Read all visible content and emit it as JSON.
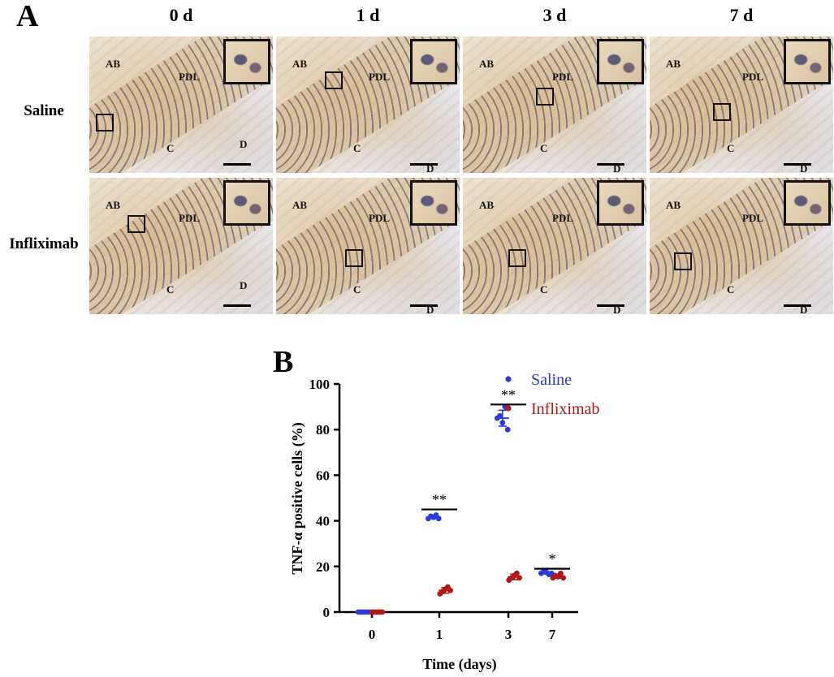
{
  "panel_a": {
    "letter": "A",
    "columns": [
      "0 d",
      "1 d",
      "3 d",
      "7 d"
    ],
    "rows": [
      "Saline",
      "Infliximab"
    ],
    "tile_labels": {
      "ab": "AB",
      "pdl": "PDL",
      "c": "C",
      "d": "D"
    }
  },
  "panel_b": {
    "letter": "B"
  },
  "chart_data": {
    "type": "scatter",
    "title": "",
    "xlabel": "Time (days)",
    "ylabel": "TNF-α positive cells (%)",
    "categories": [
      "0",
      "1",
      "3",
      "7"
    ],
    "ylim": [
      0,
      100
    ],
    "yticks": [
      0,
      20,
      40,
      60,
      80,
      100
    ],
    "legend_position": "top-right",
    "series": [
      {
        "name": "Saline",
        "color": "#2a3adf",
        "points": [
          [
            0,
            0
          ],
          [
            0,
            0
          ],
          [
            0,
            0
          ],
          [
            0,
            0
          ],
          [
            0,
            0
          ],
          [
            1,
            41
          ],
          [
            1,
            42
          ],
          [
            1,
            41.5
          ],
          [
            1,
            42.5
          ],
          [
            1,
            41
          ],
          [
            3,
            85
          ],
          [
            3,
            86
          ],
          [
            3,
            83
          ],
          [
            3,
            90
          ],
          [
            3,
            80
          ],
          [
            7,
            17
          ],
          [
            7,
            18
          ],
          [
            7,
            17.5
          ],
          [
            7,
            16.5
          ],
          [
            7,
            17
          ]
        ],
        "means": [
          0,
          41.6,
          85,
          17.2
        ],
        "sd": [
          0,
          0.6,
          3.5,
          0.5
        ]
      },
      {
        "name": "Infliximab",
        "color": "#b01818",
        "points": [
          [
            0,
            0
          ],
          [
            0,
            0
          ],
          [
            0,
            0
          ],
          [
            0,
            0
          ],
          [
            0,
            0
          ],
          [
            1,
            8
          ],
          [
            1,
            9
          ],
          [
            1,
            10
          ],
          [
            1,
            11
          ],
          [
            1,
            9.5
          ],
          [
            3,
            14
          ],
          [
            3,
            15
          ],
          [
            3,
            16
          ],
          [
            3,
            17
          ],
          [
            3,
            15
          ],
          [
            7,
            15
          ],
          [
            7,
            16
          ],
          [
            7,
            15.5
          ],
          [
            7,
            17
          ],
          [
            7,
            15
          ]
        ],
        "means": [
          0,
          9.5,
          15.4,
          15.7
        ],
        "sd": [
          0,
          1.2,
          1.2,
          0.8
        ]
      }
    ],
    "significance": [
      {
        "category": "1",
        "label": "**"
      },
      {
        "category": "3",
        "label": "**"
      },
      {
        "category": "7",
        "label": "*"
      }
    ]
  }
}
